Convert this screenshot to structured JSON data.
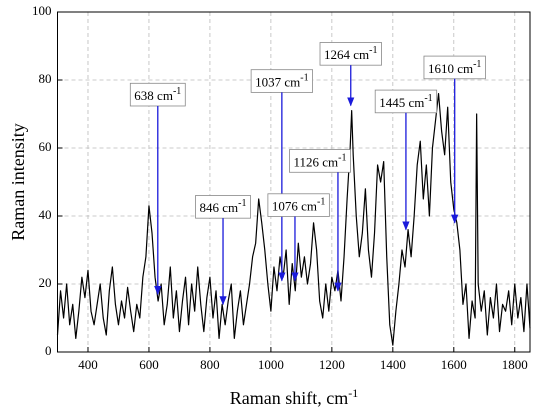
{
  "chart_data": {
    "type": "line",
    "xlabel": "Raman shift, cm",
    "xlabel_sup": "-1",
    "ylabel": "Raman intensity",
    "color": "#000000",
    "grid": true,
    "xlim": [
      300,
      1850
    ],
    "ylim": [
      0,
      100
    ],
    "xticks": [
      400,
      600,
      800,
      1000,
      1200,
      1400,
      1600,
      1800
    ],
    "yticks": [
      0,
      20,
      40,
      60,
      80,
      100
    ],
    "x": [
      300,
      310,
      320,
      330,
      340,
      350,
      360,
      370,
      380,
      390,
      400,
      410,
      420,
      430,
      440,
      450,
      460,
      470,
      480,
      490,
      500,
      510,
      520,
      530,
      540,
      550,
      560,
      570,
      580,
      590,
      600,
      610,
      620,
      630,
      640,
      650,
      660,
      670,
      680,
      690,
      700,
      710,
      720,
      730,
      740,
      750,
      760,
      770,
      780,
      790,
      800,
      810,
      820,
      830,
      840,
      850,
      860,
      870,
      880,
      890,
      900,
      910,
      920,
      930,
      940,
      950,
      960,
      970,
      980,
      990,
      1000,
      1010,
      1020,
      1030,
      1040,
      1050,
      1060,
      1070,
      1080,
      1090,
      1100,
      1110,
      1120,
      1130,
      1140,
      1150,
      1160,
      1170,
      1180,
      1190,
      1200,
      1210,
      1220,
      1230,
      1240,
      1250,
      1260,
      1265,
      1270,
      1280,
      1290,
      1300,
      1310,
      1320,
      1330,
      1340,
      1350,
      1360,
      1370,
      1380,
      1390,
      1400,
      1410,
      1420,
      1430,
      1440,
      1450,
      1460,
      1470,
      1480,
      1490,
      1500,
      1510,
      1520,
      1530,
      1540,
      1550,
      1560,
      1570,
      1580,
      1590,
      1600,
      1610,
      1620,
      1630,
      1640,
      1650,
      1660,
      1670,
      1675,
      1680,
      1690,
      1700,
      1710,
      1720,
      1730,
      1740,
      1750,
      1760,
      1770,
      1780,
      1790,
      1800,
      1810,
      1820,
      1830,
      1840,
      1850
    ],
    "values": [
      5,
      18,
      10,
      20,
      8,
      14,
      4,
      12,
      22,
      16,
      24,
      12,
      8,
      14,
      20,
      10,
      5,
      18,
      25,
      14,
      8,
      15,
      10,
      19,
      12,
      6,
      14,
      10,
      22,
      28,
      43,
      35,
      22,
      15,
      20,
      8,
      14,
      25,
      10,
      18,
      6,
      15,
      22,
      8,
      20,
      12,
      25,
      14,
      6,
      16,
      22,
      10,
      18,
      4,
      14,
      8,
      15,
      20,
      4,
      12,
      18,
      8,
      14,
      20,
      28,
      32,
      45,
      38,
      30,
      20,
      12,
      25,
      18,
      28,
      22,
      30,
      14,
      26,
      18,
      32,
      22,
      28,
      20,
      26,
      38,
      30,
      15,
      10,
      20,
      12,
      22,
      18,
      24,
      15,
      28,
      45,
      60,
      71,
      58,
      40,
      28,
      35,
      48,
      30,
      22,
      35,
      55,
      50,
      56,
      28,
      8,
      2,
      12,
      20,
      30,
      25,
      36,
      28,
      40,
      55,
      62,
      45,
      55,
      40,
      60,
      68,
      76,
      65,
      58,
      72,
      50,
      42,
      38,
      30,
      14,
      20,
      4,
      15,
      10,
      70,
      20,
      12,
      18,
      5,
      16,
      10,
      20,
      6,
      14,
      12,
      18,
      8,
      20,
      10,
      16,
      6,
      20,
      7
    ],
    "annotations": [
      {
        "text": "638 cm",
        "sup": "-1",
        "x": 629,
        "y": 17,
        "text_x": 629,
        "text_y": 75
      },
      {
        "text": "846 cm",
        "sup": "-1",
        "x": 843,
        "y": 14,
        "text_x": 843,
        "text_y": 42
      },
      {
        "text": "1037 cm",
        "sup": "-1",
        "x": 1036,
        "y": 21,
        "text_x": 1036,
        "text_y": 79
      },
      {
        "text": "1076 cm",
        "sup": "-1",
        "x": 1079,
        "y": 21,
        "text_x": 1091,
        "text_y": 42.5
      },
      {
        "text": "1126 cm",
        "sup": "-1",
        "x": 1220,
        "y": 18,
        "text_x": 1161,
        "text_y": 55.5
      },
      {
        "text": "1264 cm",
        "sup": "-1",
        "x": 1262,
        "y": 72.5,
        "text_x": 1262,
        "text_y": 87
      },
      {
        "text": "1445 cm",
        "sup": "-1",
        "x": 1443,
        "y": 36,
        "text_x": 1443,
        "text_y": 73
      },
      {
        "text": "1610 cm",
        "sup": "-1",
        "x": 1603,
        "y": 38,
        "text_x": 1603,
        "text_y": 83
      }
    ]
  }
}
